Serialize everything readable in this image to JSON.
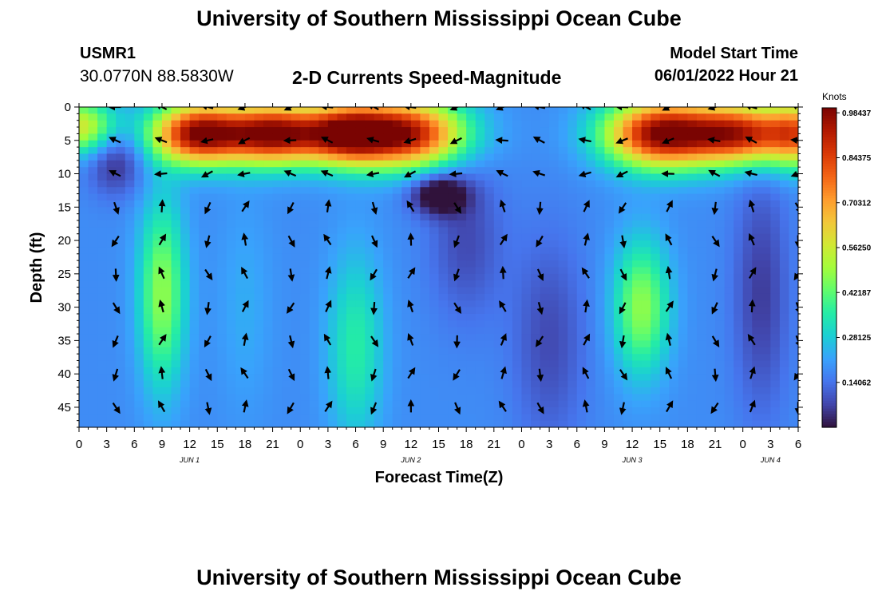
{
  "header": {
    "title": "University of Southern Mississippi Ocean Cube",
    "station": "USMR1",
    "coordinates": "30.0770N  88.5830W",
    "plot_title": "2-D Currents Speed-Magnitude",
    "model_start_label": "Model Start Time",
    "model_start_value": "06/01/2022 Hour 21"
  },
  "footer": {
    "title": "University of Southern Mississippi Ocean Cube"
  },
  "chart_data": {
    "type": "heatmap",
    "xlabel": "Forecast Time(Z)",
    "ylabel": "Depth (ft)",
    "x_ticks": [
      "0",
      "3",
      "6",
      "9",
      "12",
      "15",
      "18",
      "21",
      "0",
      "3",
      "6",
      "9",
      "12",
      "15",
      "18",
      "21",
      "0",
      "3",
      "6",
      "9",
      "12",
      "15",
      "18",
      "21",
      "0",
      "3",
      "6"
    ],
    "x_range_hours": [
      0,
      78
    ],
    "date_labels": [
      {
        "label": "JUN 1",
        "hour": 12
      },
      {
        "label": "JUN 2",
        "hour": 36
      },
      {
        "label": "JUN 3",
        "hour": 60
      },
      {
        "label": "JUN 4",
        "hour": 75
      }
    ],
    "y_ticks": [
      0,
      5,
      10,
      15,
      20,
      25,
      30,
      35,
      40,
      45
    ],
    "ylim": [
      0,
      48
    ],
    "y_inverted": true,
    "colorbar": {
      "title": "Knots",
      "tick_labels": [
        "0.98437",
        "0.84375",
        "0.70312",
        "0.56250",
        "0.42187",
        "0.28125",
        "0.14062"
      ],
      "range": [
        0,
        1.0
      ],
      "colors": [
        "#30123b",
        "#4145ab",
        "#4675ed",
        "#39a2fc",
        "#1bcfd4",
        "#24eca6",
        "#61fc6c",
        "#a4fc3b",
        "#d1e834",
        "#f3c63a",
        "#fe9b2d",
        "#f36315",
        "#d93806",
        "#b11901",
        "#7a0402"
      ]
    },
    "arrow_columns_hours": [
      4,
      9,
      14,
      18,
      23,
      27,
      32,
      36,
      41,
      46,
      50,
      55,
      59,
      64,
      69,
      73,
      78
    ],
    "arrow_rows_ft": [
      0,
      5,
      10,
      15,
      20,
      25,
      30,
      35,
      40,
      45
    ]
  }
}
